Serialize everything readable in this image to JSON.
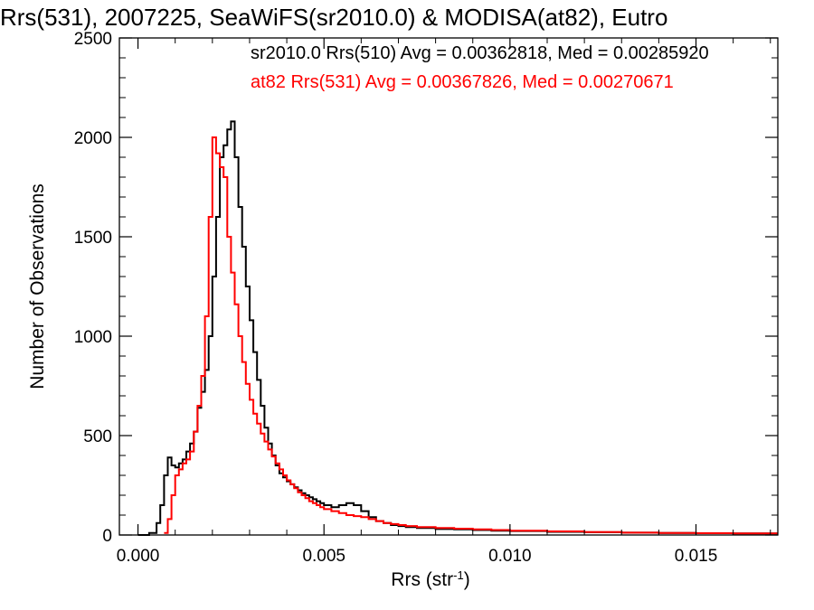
{
  "chart_data": {
    "type": "line",
    "title": "Rrs(531), 2007225, SeaWiFS(sr2010.0) & MODISA(at82), Eutro",
    "xlabel": "Rrs (str",
    "xlabel_sup": "-1",
    "xlabel_end": ")",
    "ylabel": "Number of Observations",
    "xlim": [
      -0.0005,
      0.0172
    ],
    "ylim": [
      0,
      2500
    ],
    "xticks": [
      0.0,
      0.005,
      0.01,
      0.015
    ],
    "xtick_labels": [
      "0.000",
      "0.005",
      "0.010",
      "0.015"
    ],
    "yticks": [
      0,
      500,
      1000,
      1500,
      2000,
      2500
    ],
    "ytick_labels": [
      "0",
      "500",
      "1000",
      "1500",
      "2000",
      "2500"
    ],
    "grid": false,
    "legend_position": "top-right",
    "series": [
      {
        "name": "sr2010.0 Rrs(510) Avg = 0.00362818, Med = 0.00285920",
        "color": "#000000",
        "step": "post",
        "x": [
          0.0,
          0.0003,
          0.0005,
          0.0006,
          0.0007,
          0.0008,
          0.0009,
          0.001,
          0.0011,
          0.0012,
          0.0013,
          0.0014,
          0.0015,
          0.0016,
          0.0017,
          0.0018,
          0.0019,
          0.002,
          0.0021,
          0.0022,
          0.0023,
          0.0024,
          0.0025,
          0.0026,
          0.0027,
          0.0028,
          0.0029,
          0.003,
          0.0031,
          0.0032,
          0.0033,
          0.0034,
          0.0035,
          0.0036,
          0.0037,
          0.0038,
          0.0039,
          0.004,
          0.0041,
          0.0042,
          0.0043,
          0.0044,
          0.0045,
          0.0046,
          0.0047,
          0.0048,
          0.0049,
          0.005,
          0.0052,
          0.0054,
          0.0056,
          0.0058,
          0.006,
          0.0062,
          0.0064,
          0.0066,
          0.0068,
          0.007,
          0.0072,
          0.0075,
          0.008,
          0.0085,
          0.009,
          0.0095,
          0.01,
          0.011,
          0.012,
          0.013,
          0.014,
          0.015,
          0.016,
          0.0172
        ],
        "values": [
          0,
          10,
          60,
          150,
          300,
          390,
          350,
          340,
          360,
          380,
          420,
          460,
          520,
          640,
          720,
          830,
          1000,
          1300,
          1600,
          1900,
          1960,
          2040,
          2080,
          1900,
          1650,
          1450,
          1250,
          1080,
          920,
          780,
          650,
          540,
          460,
          400,
          350,
          310,
          290,
          270,
          255,
          240,
          225,
          210,
          200,
          190,
          180,
          170,
          160,
          150,
          140,
          150,
          160,
          150,
          120,
          90,
          70,
          60,
          50,
          45,
          40,
          35,
          30,
          28,
          25,
          22,
          20,
          16,
          14,
          12,
          10,
          9,
          8,
          8
        ]
      },
      {
        "name": "at82 Rrs(531) Avg = 0.00367826, Med = 0.00270671",
        "color": "#ff0000",
        "step": "post",
        "x": [
          0.0007,
          0.0008,
          0.0009,
          0.001,
          0.0011,
          0.0012,
          0.0013,
          0.0014,
          0.0015,
          0.0016,
          0.0017,
          0.0018,
          0.0019,
          0.002,
          0.0021,
          0.0022,
          0.0023,
          0.0024,
          0.0025,
          0.0026,
          0.0027,
          0.0028,
          0.0029,
          0.003,
          0.0031,
          0.0032,
          0.0033,
          0.0034,
          0.0035,
          0.0036,
          0.0037,
          0.0038,
          0.0039,
          0.004,
          0.0041,
          0.0042,
          0.0043,
          0.0044,
          0.0045,
          0.0046,
          0.0047,
          0.0048,
          0.0049,
          0.005,
          0.0052,
          0.0054,
          0.0056,
          0.0058,
          0.006,
          0.0062,
          0.0064,
          0.0066,
          0.0068,
          0.007,
          0.0072,
          0.0075,
          0.008,
          0.0085,
          0.009,
          0.0095,
          0.01,
          0.011,
          0.012,
          0.013,
          0.014,
          0.015,
          0.016,
          0.0172
        ],
        "values": [
          10,
          80,
          200,
          300,
          330,
          360,
          380,
          420,
          520,
          650,
          800,
          1100,
          1600,
          2000,
          1920,
          1850,
          1800,
          1500,
          1320,
          1160,
          1000,
          870,
          760,
          680,
          610,
          560,
          510,
          470,
          430,
          395,
          360,
          330,
          300,
          275,
          255,
          235,
          215,
          200,
          185,
          170,
          160,
          150,
          140,
          130,
          120,
          110,
          100,
          95,
          90,
          80,
          70,
          60,
          55,
          50,
          45,
          40,
          35,
          32,
          28,
          25,
          22,
          18,
          15,
          12,
          10,
          9,
          8,
          8
        ]
      }
    ]
  }
}
